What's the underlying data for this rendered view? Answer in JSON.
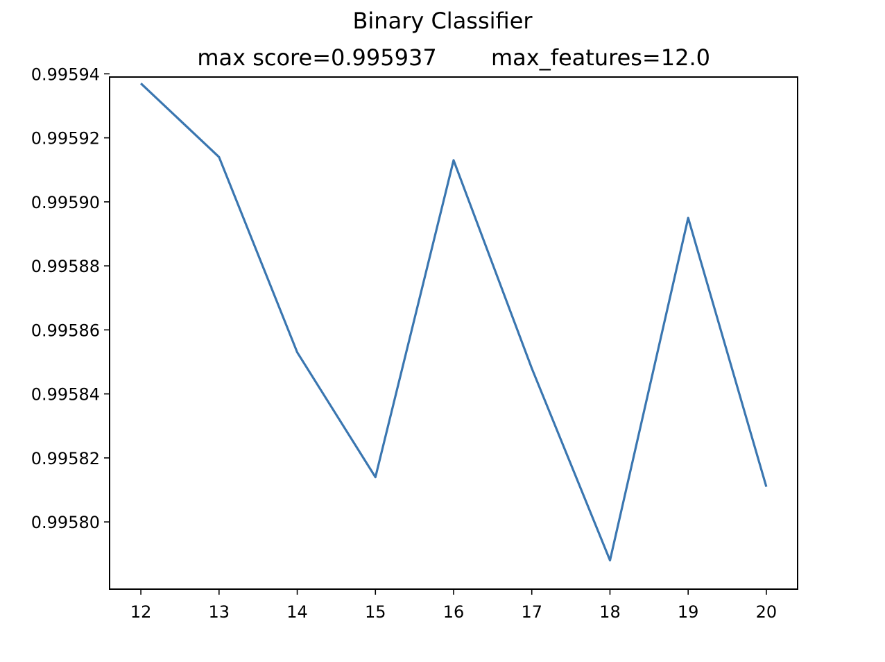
{
  "chart_data": {
    "type": "line",
    "title": "Binary Classifier",
    "subtitle_left": "max score=0.995937",
    "subtitle_right": "max_features=12.0",
    "xlabel": "",
    "ylabel": "",
    "x": [
      12,
      13,
      14,
      15,
      16,
      17,
      18,
      19,
      20
    ],
    "series": [
      {
        "values": [
          0.995937,
          0.995914,
          0.995853,
          0.995814,
          0.995913,
          0.995848,
          0.995788,
          0.995895,
          0.995811
        ],
        "color": "#3a76b0"
      }
    ],
    "x_ticks": [
      "12",
      "13",
      "14",
      "15",
      "16",
      "17",
      "18",
      "19",
      "20"
    ],
    "y_ticks": [
      "0.99580",
      "0.99582",
      "0.99584",
      "0.99586",
      "0.99588",
      "0.99590",
      "0.99592",
      "0.99594"
    ],
    "xlim": [
      11.6,
      20.4
    ],
    "ylim": [
      0.995779,
      0.995939
    ],
    "grid": false
  }
}
